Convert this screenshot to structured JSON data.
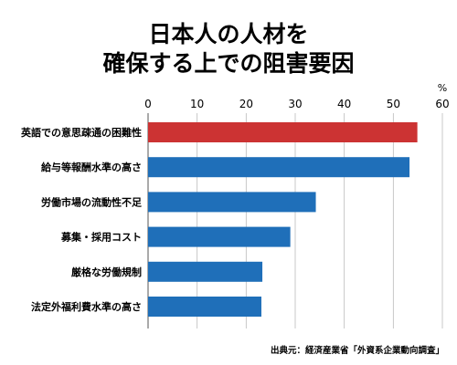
{
  "title_lines": [
    "日本人の人材を",
    "確保する上での阻害要因"
  ],
  "unit": "%",
  "source": "出典元：経済産業省「外資系企業動向調査」",
  "chart_data": {
    "type": "bar",
    "orientation": "horizontal",
    "categories": [
      "英語での意思疎通の困難性",
      "給与等報酬水準の高さ",
      "労働市場の流動性不足",
      "募集・採用コスト",
      "厳格な労働規制",
      "法定外福利費水準の高さ"
    ],
    "values": [
      54.9,
      53.3,
      34.2,
      29.0,
      23.3,
      23.1
    ],
    "xlim": [
      0,
      60
    ],
    "xticks": [
      0,
      10,
      20,
      30,
      40,
      50,
      60
    ],
    "grid": true,
    "colors": {
      "highlight": "#cc3333",
      "default": "#1f6fb9"
    },
    "highlight_index": 0
  }
}
